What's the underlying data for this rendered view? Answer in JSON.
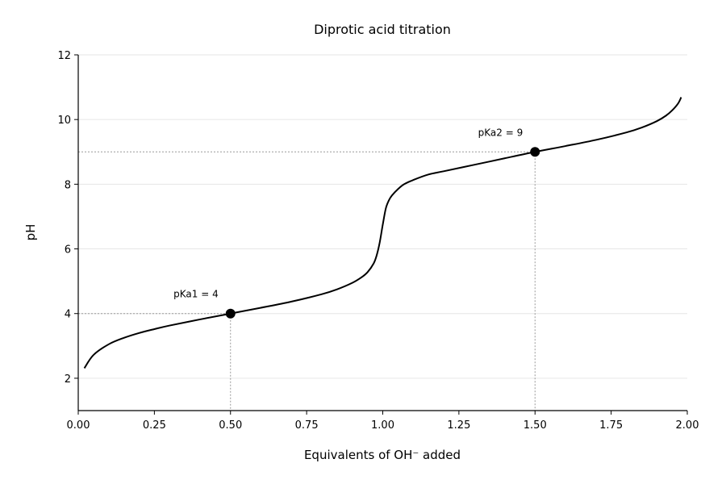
{
  "chart_data": {
    "type": "line",
    "title": "Diprotic acid titration",
    "xlabel": "Equivalents of OH⁻ added",
    "ylabel": "pH",
    "xlim": [
      0.0,
      2.0
    ],
    "ylim": [
      1.0,
      12.0
    ],
    "xticks": [
      "0.00",
      "0.25",
      "0.50",
      "0.75",
      "1.00",
      "1.25",
      "1.50",
      "1.75",
      "2.00"
    ],
    "yticks": [
      "2",
      "4",
      "6",
      "8",
      "10",
      "12"
    ],
    "grid": "horizontal",
    "series": [
      {
        "x": [
          0.02,
          0.05,
          0.1,
          0.15,
          0.2,
          0.25,
          0.3,
          0.4,
          0.5,
          0.6,
          0.7,
          0.8,
          0.85,
          0.9,
          0.93,
          0.95,
          0.97,
          0.98,
          0.99,
          1.0,
          1.01,
          1.02,
          1.03,
          1.05,
          1.07,
          1.1,
          1.15,
          1.2,
          1.3,
          1.4,
          1.5,
          1.6,
          1.7,
          1.8,
          1.85,
          1.9,
          1.93,
          1.95,
          1.97,
          1.98
        ],
        "y": [
          2.31,
          2.72,
          3.05,
          3.25,
          3.4,
          3.52,
          3.63,
          3.82,
          4.0,
          4.18,
          4.37,
          4.6,
          4.75,
          4.95,
          5.12,
          5.28,
          5.55,
          5.8,
          6.2,
          6.75,
          7.25,
          7.5,
          7.65,
          7.85,
          8.0,
          8.13,
          8.3,
          8.4,
          8.6,
          8.8,
          9.0,
          9.18,
          9.37,
          9.6,
          9.75,
          9.95,
          10.12,
          10.28,
          10.5,
          10.69
        ]
      }
    ],
    "markers": [
      {
        "x": 0.5,
        "y": 4.0,
        "label": "pKa1 = 4",
        "label_position": "above-left"
      },
      {
        "x": 1.5,
        "y": 9.0,
        "label": "pKa2 = 9",
        "label_position": "above-left"
      }
    ]
  }
}
